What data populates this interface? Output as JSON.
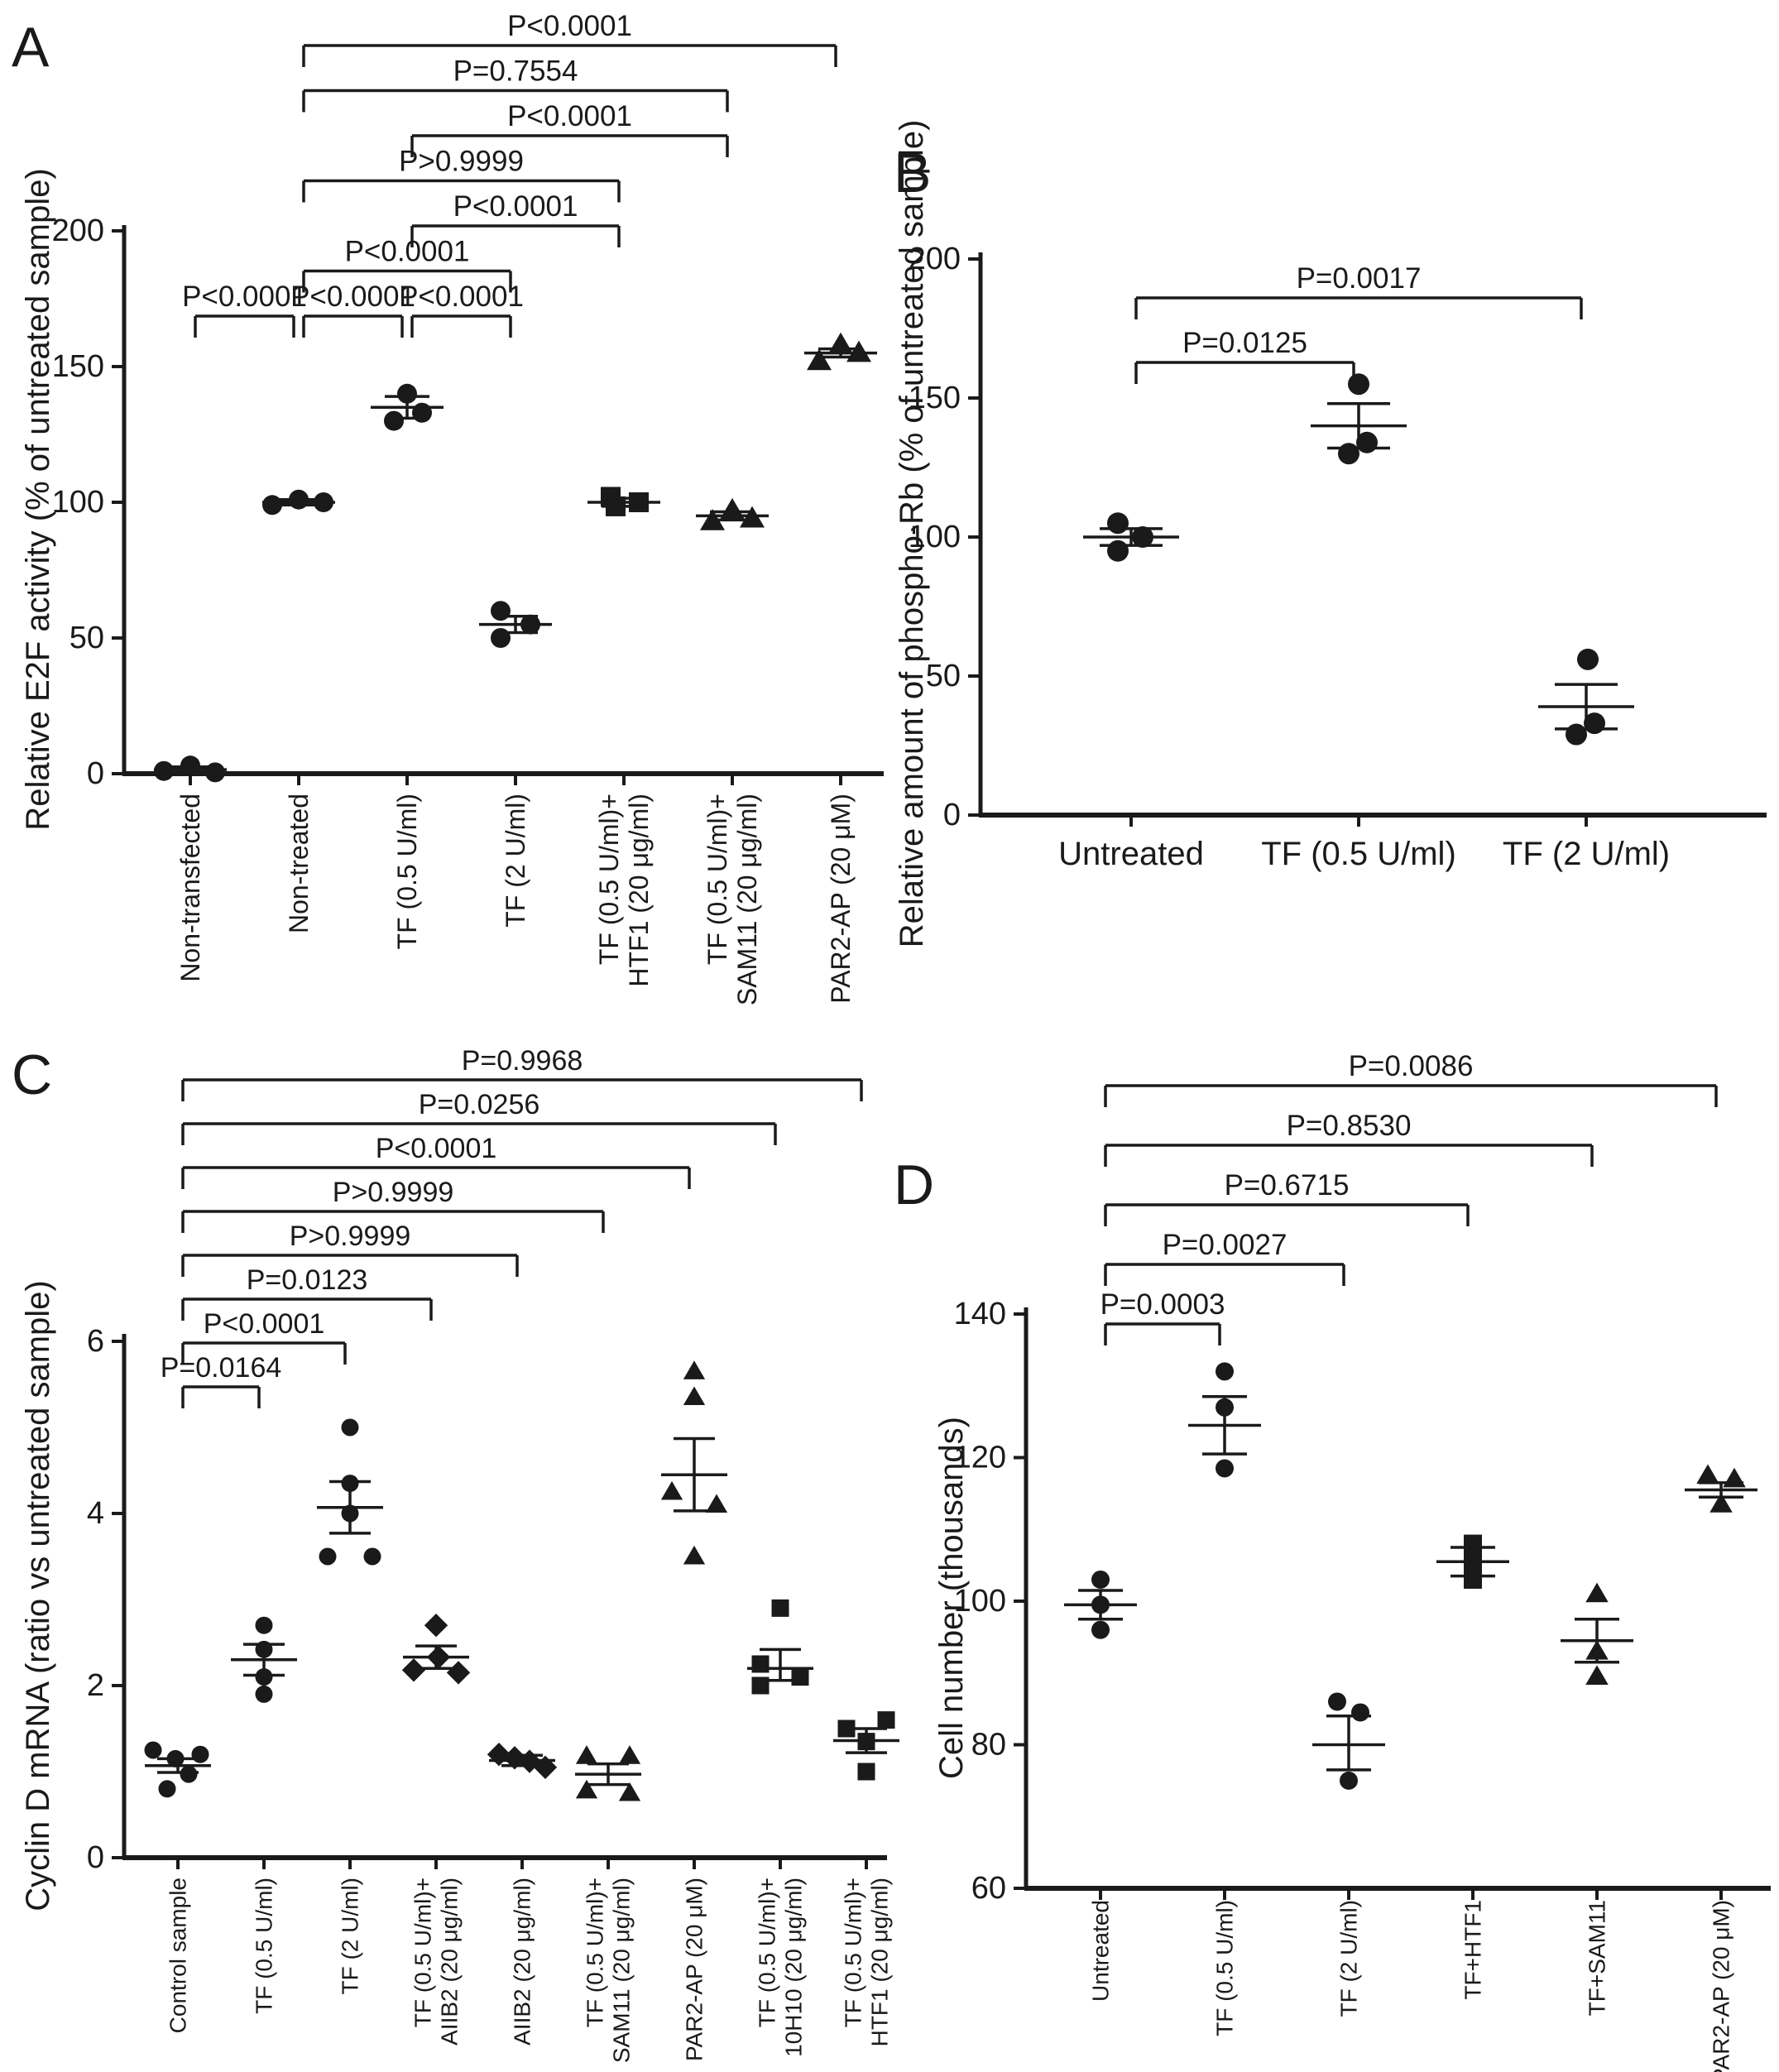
{
  "figure": {
    "background": "#ffffff",
    "ink": "#1a1a1a"
  },
  "chart_data": [
    {
      "panel": "A",
      "type": "scatter",
      "title": "",
      "ylabel": "Relative E2F activity (% of untreated sample)",
      "xlabel": "",
      "ylim": [
        0,
        200
      ],
      "yticks": [
        0,
        50,
        100,
        150,
        200
      ],
      "grid": false,
      "legend": "none",
      "groups": [
        {
          "label": [
            "Non-transfected"
          ],
          "marker": "circle",
          "points": [
            {
              "v": 3,
              "dx": 0
            },
            {
              "v": 1,
              "dx": -32
            },
            {
              "v": 0.5,
              "dx": 30
            }
          ],
          "mean": 1.5,
          "err": [
            0.5,
            2.5
          ]
        },
        {
          "label": [
            "Non-treated"
          ],
          "marker": "circle",
          "points": [
            {
              "v": 99,
              "dx": -32
            },
            {
              "v": 101,
              "dx": 0
            },
            {
              "v": 100,
              "dx": 30
            }
          ],
          "mean": 100,
          "err": [
            99,
            101
          ]
        },
        {
          "label": [
            "TF (0.5 U/ml)"
          ],
          "marker": "circle",
          "points": [
            {
              "v": 140,
              "dx": 0
            },
            {
              "v": 130,
              "dx": -16
            },
            {
              "v": 133,
              "dx": 18
            }
          ],
          "mean": 135,
          "err": [
            131,
            139
          ]
        },
        {
          "label": [
            "TF (2 U/ml)"
          ],
          "marker": "circle",
          "points": [
            {
              "v": 60,
              "dx": -18
            },
            {
              "v": 50,
              "dx": -18
            },
            {
              "v": 55,
              "dx": 18
            }
          ],
          "mean": 55,
          "err": [
            52,
            58
          ]
        },
        {
          "label": [
            "TF (0.5 U/ml)+",
            "HTF1 (20 μg/ml)"
          ],
          "marker": "square",
          "points": [
            {
              "v": 102,
              "dx": -16
            },
            {
              "v": 98.5,
              "dx": -10
            },
            {
              "v": 100,
              "dx": 18
            }
          ],
          "mean": 100,
          "err": [
            98.5,
            101.5
          ]
        },
        {
          "label": [
            "TF (0.5 U/ml)+",
            "SAM11 (20 μg/ml)"
          ],
          "marker": "triangle",
          "points": [
            {
              "v": 97,
              "dx": 0
            },
            {
              "v": 93,
              "dx": -24
            },
            {
              "v": 94,
              "dx": 24
            }
          ],
          "mean": 95,
          "err": [
            93.5,
            96.5
          ]
        },
        {
          "label": [
            "PAR2-AP (20 μM)"
          ],
          "marker": "triangle",
          "points": [
            {
              "v": 158,
              "dx": 0
            },
            {
              "v": 152,
              "dx": -26
            },
            {
              "v": 155,
              "dx": 22
            }
          ],
          "mean": 155,
          "err": [
            153.5,
            156.5
          ]
        }
      ],
      "comparisons": [
        {
          "from": 0,
          "to": 1,
          "p": "P<0.0001",
          "tier": 0
        },
        {
          "from": 1,
          "to": 2,
          "p": "P<0.0001",
          "tier": 0
        },
        {
          "from": 2,
          "to": 3,
          "p": "P<0.0001",
          "tier": 0
        },
        {
          "from": 1,
          "to": 3,
          "p": "P<0.0001",
          "tier": 1
        },
        {
          "from": 2,
          "to": 4,
          "p": "P<0.0001",
          "tier": 2
        },
        {
          "from": 1,
          "to": 4,
          "p": "P>0.9999",
          "tier": 3
        },
        {
          "from": 2,
          "to": 5,
          "p": "P<0.0001",
          "tier": 4
        },
        {
          "from": 1,
          "to": 5,
          "p": "P=0.7554",
          "tier": 5
        },
        {
          "from": 1,
          "to": 6,
          "p": "P<0.0001",
          "tier": 6
        }
      ]
    },
    {
      "panel": "B",
      "type": "scatter",
      "title": "",
      "ylabel": "Relative amount of phospho-Rb (% of untreated sample)",
      "xlabel": "",
      "ylim": [
        0,
        200
      ],
      "yticks": [
        0,
        50,
        100,
        150,
        200
      ],
      "grid": false,
      "legend": "none",
      "groups": [
        {
          "label": [
            "Untreated"
          ],
          "marker": "circle",
          "points": [
            {
              "v": 105,
              "dx": -16
            },
            {
              "v": 100,
              "dx": 14
            },
            {
              "v": 95,
              "dx": -16
            }
          ],
          "mean": 100,
          "err": [
            97,
            103
          ]
        },
        {
          "label": [
            "TF (0.5 U/ml)"
          ],
          "marker": "circle",
          "points": [
            {
              "v": 155,
              "dx": 0
            },
            {
              "v": 134,
              "dx": 10
            },
            {
              "v": 130,
              "dx": -12
            }
          ],
          "mean": 140,
          "err": [
            132,
            148
          ]
        },
        {
          "label": [
            "TF (2 U/ml)"
          ],
          "marker": "circle",
          "points": [
            {
              "v": 56,
              "dx": 2
            },
            {
              "v": 33,
              "dx": 10
            },
            {
              "v": 29,
              "dx": -12
            }
          ],
          "mean": 39,
          "err": [
            31,
            47
          ]
        }
      ],
      "comparisons": [
        {
          "from": 0,
          "to": 1,
          "p": "P=0.0125",
          "tier": 0
        },
        {
          "from": 0,
          "to": 2,
          "p": "P=0.0017",
          "tier": 1
        }
      ]
    },
    {
      "panel": "C",
      "type": "scatter",
      "title": "",
      "ylabel": "Cyclin D mRNA (ratio vs untreated sample)",
      "xlabel": "",
      "ylim": [
        0,
        6
      ],
      "yticks": [
        0,
        2,
        4,
        6
      ],
      "grid": false,
      "legend": "none",
      "groups": [
        {
          "label": [
            "Control sample"
          ],
          "marker": "circle",
          "points": [
            {
              "v": 1.25,
              "dx": -30
            },
            {
              "v": 1.2,
              "dx": 27
            },
            {
              "v": 1.15,
              "dx": -3
            },
            {
              "v": 0.97,
              "dx": 13
            },
            {
              "v": 0.8,
              "dx": -13
            }
          ],
          "mean": 1.07,
          "err": [
            0.99,
            1.15
          ]
        },
        {
          "label": [
            "TF (0.5 U/ml)"
          ],
          "marker": "circle",
          "points": [
            {
              "v": 2.7,
              "dx": 0
            },
            {
              "v": 2.42,
              "dx": 0
            },
            {
              "v": 2.1,
              "dx": 0
            },
            {
              "v": 1.9,
              "dx": 0
            }
          ],
          "mean": 2.3,
          "err": [
            2.12,
            2.48
          ]
        },
        {
          "label": [
            "TF (2 U/ml)"
          ],
          "marker": "circle",
          "points": [
            {
              "v": 5.0,
              "dx": 0
            },
            {
              "v": 4.35,
              "dx": 0
            },
            {
              "v": 4.0,
              "dx": 0
            },
            {
              "v": 3.5,
              "dx": -27
            },
            {
              "v": 3.5,
              "dx": 27
            }
          ],
          "mean": 4.07,
          "err": [
            3.77,
            4.37
          ]
        },
        {
          "label": [
            "TF (0.5 U/ml)+",
            "AIIB2 (20 μg/ml)"
          ],
          "marker": "diamond",
          "points": [
            {
              "v": 2.7,
              "dx": 0
            },
            {
              "v": 2.33,
              "dx": 3
            },
            {
              "v": 2.18,
              "dx": -27
            },
            {
              "v": 2.15,
              "dx": 27
            }
          ],
          "mean": 2.33,
          "err": [
            2.2,
            2.46
          ]
        },
        {
          "label": [
            "AIIB2 (20 μg/ml)"
          ],
          "marker": "diamond",
          "points": [
            {
              "v": 1.2,
              "dx": -28
            },
            {
              "v": 1.16,
              "dx": -9
            },
            {
              "v": 1.12,
              "dx": 9
            },
            {
              "v": 1.05,
              "dx": 28
            }
          ],
          "mean": 1.13,
          "err": [
            1.07,
            1.19
          ]
        },
        {
          "label": [
            "TF (0.5 U/ml)+",
            "SAM11 (20 μg/ml)"
          ],
          "marker": "triangle",
          "points": [
            {
              "v": 1.18,
              "dx": -26
            },
            {
              "v": 1.18,
              "dx": 26
            },
            {
              "v": 0.78,
              "dx": -26
            },
            {
              "v": 0.75,
              "dx": 26
            }
          ],
          "mean": 0.97,
          "err": [
            0.85,
            1.09
          ]
        },
        {
          "label": [
            "PAR2-AP (20 μM)"
          ],
          "marker": "triangle",
          "points": [
            {
              "v": 5.65,
              "dx": 0
            },
            {
              "v": 5.35,
              "dx": 0
            },
            {
              "v": 4.25,
              "dx": -27
            },
            {
              "v": 4.1,
              "dx": 27
            },
            {
              "v": 3.5,
              "dx": 0
            }
          ],
          "mean": 4.45,
          "err": [
            4.03,
            4.87
          ]
        },
        {
          "label": [
            "TF (0.5 U/ml)+",
            "10H10 (20 μg/ml)"
          ],
          "marker": "square",
          "points": [
            {
              "v": 2.9,
              "dx": 0
            },
            {
              "v": 2.25,
              "dx": -24
            },
            {
              "v": 2.1,
              "dx": 24
            },
            {
              "v": 2.0,
              "dx": -24
            }
          ],
          "mean": 2.2,
          "err": [
            2.06,
            2.42
          ]
        },
        {
          "label": [
            "TF (0.5 U/ml)+",
            "HTF1 (20 μg/ml)"
          ],
          "marker": "square",
          "points": [
            {
              "v": 1.6,
              "dx": 24
            },
            {
              "v": 1.5,
              "dx": -24
            },
            {
              "v": 1.35,
              "dx": 0
            },
            {
              "v": 1.0,
              "dx": 0
            }
          ],
          "mean": 1.36,
          "err": [
            1.22,
            1.5
          ]
        }
      ],
      "comparisons": [
        {
          "from": 0,
          "to": 1,
          "p": "P=0.0164",
          "tier": 0
        },
        {
          "from": 0,
          "to": 2,
          "p": "P<0.0001",
          "tier": 1
        },
        {
          "from": 0,
          "to": 3,
          "p": "P=0.0123",
          "tier": 2
        },
        {
          "from": 0,
          "to": 4,
          "p": "P>0.9999",
          "tier": 3
        },
        {
          "from": 0,
          "to": 5,
          "p": "P>0.9999",
          "tier": 4
        },
        {
          "from": 0,
          "to": 6,
          "p": "P<0.0001",
          "tier": 5
        },
        {
          "from": 0,
          "to": 7,
          "p": "P=0.0256",
          "tier": 6
        },
        {
          "from": 0,
          "to": 8,
          "p": "P=0.9968",
          "tier": 7
        }
      ]
    },
    {
      "panel": "D",
      "type": "scatter",
      "title": "",
      "ylabel": "Cell number (thousands)",
      "xlabel": "",
      "ylim": [
        60,
        140
      ],
      "yticks": [
        60,
        80,
        100,
        120,
        140
      ],
      "grid": false,
      "legend": "none",
      "groups": [
        {
          "label": [
            "Untreated"
          ],
          "marker": "circle",
          "points": [
            {
              "v": 103,
              "dx": 0
            },
            {
              "v": 99.5,
              "dx": 0
            },
            {
              "v": 96,
              "dx": 0
            }
          ],
          "mean": 99.5,
          "err": [
            97.5,
            101.5
          ]
        },
        {
          "label": [
            "TF (0.5 U/ml)"
          ],
          "marker": "circle",
          "points": [
            {
              "v": 132,
              "dx": 0
            },
            {
              "v": 127,
              "dx": 0
            },
            {
              "v": 118.5,
              "dx": 0
            }
          ],
          "mean": 124.5,
          "err": [
            120.5,
            128.5
          ]
        },
        {
          "label": [
            "TF (2 U/ml)"
          ],
          "marker": "circle",
          "points": [
            {
              "v": 86,
              "dx": -14
            },
            {
              "v": 84.5,
              "dx": 14
            },
            {
              "v": 75,
              "dx": 0
            }
          ],
          "mean": 80,
          "err": [
            76.5,
            84
          ]
        },
        {
          "label": [
            "TF+HTF1"
          ],
          "marker": "square",
          "points": [
            {
              "v": 108,
              "dx": 0
            },
            {
              "v": 105.5,
              "dx": 0
            },
            {
              "v": 103,
              "dx": 0
            }
          ],
          "mean": 105.5,
          "err": [
            103.5,
            107.5
          ]
        },
        {
          "label": [
            "TF+SAM11"
          ],
          "marker": "triangle",
          "points": [
            {
              "v": 101,
              "dx": 0
            },
            {
              "v": 93,
              "dx": 0
            },
            {
              "v": 89.5,
              "dx": 0
            }
          ],
          "mean": 94.5,
          "err": [
            91.5,
            97.5
          ]
        },
        {
          "label": [
            "PAR2-AP (20 μM)"
          ],
          "marker": "triangle",
          "points": [
            {
              "v": 117.5,
              "dx": -16
            },
            {
              "v": 117,
              "dx": 16
            },
            {
              "v": 113.5,
              "dx": 0
            }
          ],
          "mean": 115.5,
          "err": [
            114.5,
            116.5
          ]
        }
      ],
      "comparisons": [
        {
          "from": 0,
          "to": 1,
          "p": "P=0.0003",
          "tier": 0
        },
        {
          "from": 0,
          "to": 2,
          "p": "P=0.0027",
          "tier": 1
        },
        {
          "from": 0,
          "to": 3,
          "p": "P=0.6715",
          "tier": 2
        },
        {
          "from": 0,
          "to": 4,
          "p": "P=0.8530",
          "tier": 3
        },
        {
          "from": 0,
          "to": 5,
          "p": "P=0.0086",
          "tier": 4
        }
      ]
    }
  ]
}
